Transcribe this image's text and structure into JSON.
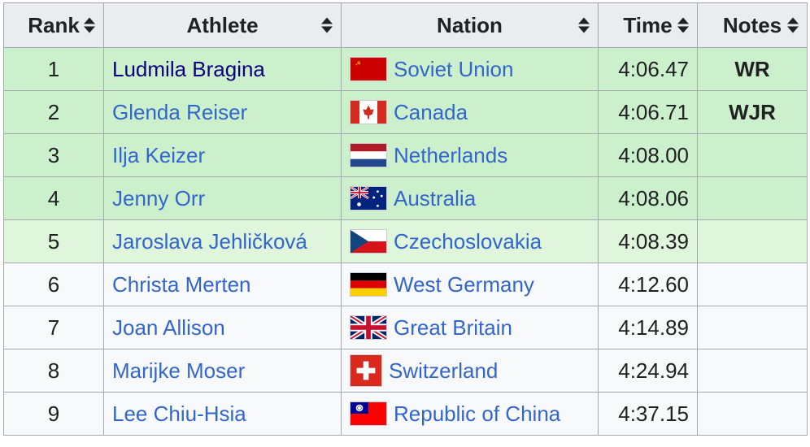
{
  "headers": {
    "rank": "Rank",
    "athlete": "Athlete",
    "nation": "Nation",
    "time": "Time",
    "notes": "Notes"
  },
  "rows": [
    {
      "rank": "1",
      "athlete": "Ludmila Bragina",
      "nation": "Soviet Union",
      "flag": "soviet-union-flag-icon",
      "time": "4:06.47",
      "notes": "WR"
    },
    {
      "rank": "2",
      "athlete": "Glenda Reiser",
      "nation": "Canada",
      "flag": "canada-flag-icon",
      "time": "4:06.71",
      "notes": "WJR"
    },
    {
      "rank": "3",
      "athlete": "Ilja Keizer",
      "nation": "Netherlands",
      "flag": "netherlands-flag-icon",
      "time": "4:08.00",
      "notes": ""
    },
    {
      "rank": "4",
      "athlete": "Jenny Orr",
      "nation": "Australia",
      "flag": "australia-flag-icon",
      "time": "4:08.06",
      "notes": ""
    },
    {
      "rank": "5",
      "athlete": "Jaroslava Jehličková",
      "nation": "Czechoslovakia",
      "flag": "czechoslovakia-flag-icon",
      "time": "4:08.39",
      "notes": ""
    },
    {
      "rank": "6",
      "athlete": "Christa Merten",
      "nation": "West Germany",
      "flag": "west-germany-flag-icon",
      "time": "4:12.60",
      "notes": ""
    },
    {
      "rank": "7",
      "athlete": "Joan Allison",
      "nation": "Great Britain",
      "flag": "great-britain-flag-icon",
      "time": "4:14.89",
      "notes": ""
    },
    {
      "rank": "8",
      "athlete": "Marijke Moser",
      "nation": "Switzerland",
      "flag": "switzerland-flag-icon",
      "time": "4:24.94",
      "notes": ""
    },
    {
      "rank": "9",
      "athlete": "Lee Chiu-Hsia",
      "nation": "Republic of China",
      "flag": "republic-of-china-flag-icon",
      "time": "4:37.15",
      "notes": ""
    }
  ],
  "colors": {
    "qualified_row": "#ccf0cc",
    "qualified_row_light": "#dff5dc",
    "plain_row": "#f8f9fa",
    "header_bg": "#eaecf0",
    "link": "#3366cc",
    "visited_link": "#0b0080",
    "border": "#a2a9b1"
  }
}
